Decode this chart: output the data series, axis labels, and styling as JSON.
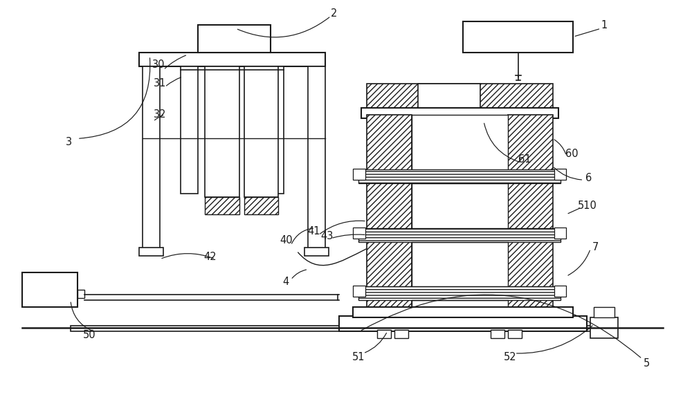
{
  "bg_color": "#ffffff",
  "line_color": "#1a1a1a",
  "label_color": "#1a1a1a",
  "label_fontsize": 10.5,
  "fig_width": 10.0,
  "fig_height": 5.77
}
